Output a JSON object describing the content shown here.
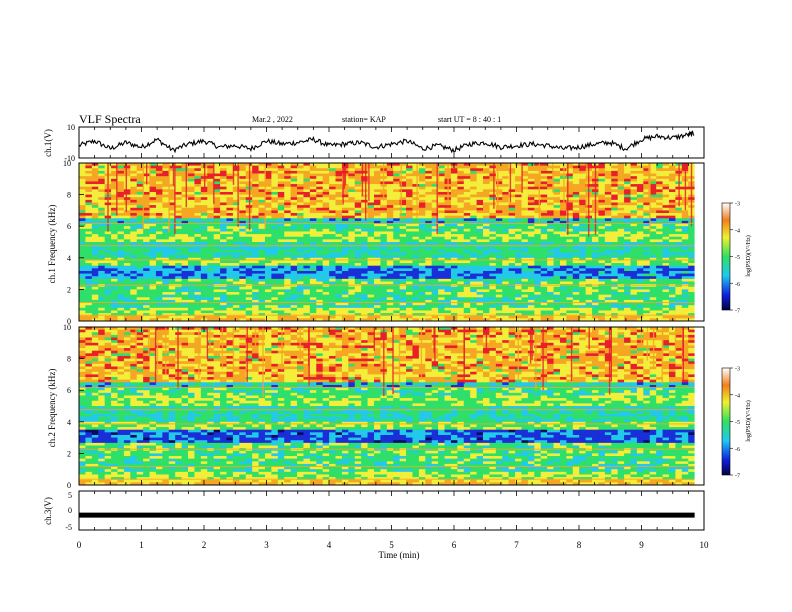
{
  "header": {
    "title": "VLF Spectra",
    "date": "Mar.2 , 2022",
    "station": "station= KAP",
    "start": "start UT = 8 : 40 : 1"
  },
  "chart_data": [
    {
      "type": "line",
      "panel": "ch1-waveform",
      "ylabel": "ch.1(V)",
      "ylim": [
        -10,
        10
      ],
      "yticks": [
        "10",
        "-10"
      ],
      "xlim": [
        0,
        10
      ],
      "series": [
        {
          "x": [
            0,
            0.25,
            0.5,
            0.75,
            1,
            1.25,
            1.5,
            1.75,
            2,
            2.25,
            2.5,
            2.75,
            3,
            3.25,
            3.5,
            3.75,
            4,
            4.25,
            4.5,
            4.75,
            5,
            5.25,
            5.5,
            5.75,
            6,
            6.25,
            6.5,
            6.75,
            7,
            7.25,
            7.5,
            7.75,
            8,
            8.25,
            8.5,
            8.75,
            9,
            9.25,
            9.5,
            9.75,
            9.85
          ],
          "y": [
            -2,
            1,
            -4,
            0,
            -3,
            2,
            -5,
            -1,
            1,
            -3,
            -2,
            -4,
            1,
            -1,
            0,
            2,
            -2,
            -1,
            0,
            -3,
            -1,
            1,
            -4,
            -2,
            -5,
            -1,
            0,
            -3,
            -2,
            -1,
            -2,
            -4,
            -3,
            -1,
            0,
            -4,
            2,
            4,
            3,
            5,
            6
          ]
        }
      ]
    },
    {
      "type": "heatmap",
      "panel": "ch1-spectrogram",
      "ylabel": "ch.1 Frequency (kHz)",
      "ylim": [
        0,
        10
      ],
      "yticks": [
        "0",
        "2",
        "4",
        "6",
        "8",
        "10"
      ],
      "xlim": [
        0,
        9.85
      ],
      "colorbar": {
        "label": "log(PSD)(V²/Hz)",
        "range": [
          -7,
          -3
        ],
        "ticks": [
          "-3",
          "-4",
          "-5",
          "-6",
          "-7"
        ]
      }
    },
    {
      "type": "heatmap",
      "panel": "ch2-spectrogram",
      "ylabel": "ch.2 Frequency (kHz)",
      "ylim": [
        0,
        10
      ],
      "yticks": [
        "0",
        "2",
        "4",
        "6",
        "8",
        "10"
      ],
      "xlim": [
        0,
        9.85
      ],
      "colorbar": {
        "label": "log(PSD)(V²/Hz)",
        "range": [
          -7,
          -3
        ],
        "ticks": [
          "-3",
          "-4",
          "-5",
          "-6",
          "-7"
        ]
      }
    },
    {
      "type": "line",
      "panel": "ch3-waveform",
      "ylabel": "ch.3(V)",
      "ylim": [
        -5,
        5
      ],
      "yticks": [
        "5",
        "0",
        "-5"
      ],
      "xlim": [
        0,
        10
      ],
      "series": [
        {
          "x": [
            0,
            9.85
          ],
          "y": [
            -1.2,
            -1.2
          ]
        }
      ]
    }
  ],
  "xaxis": {
    "label": "Time (min)",
    "ticks": [
      "0",
      "1",
      "2",
      "3",
      "4",
      "5",
      "6",
      "7",
      "8",
      "9",
      "10"
    ]
  },
  "colors": {
    "red": "#e8202a",
    "orange": "#f5a623",
    "yellow": "#f2ee3a",
    "green": "#2ee06a",
    "cyan": "#23c9e8",
    "blue": "#1a2fd8",
    "navy": "#0a0a60"
  }
}
